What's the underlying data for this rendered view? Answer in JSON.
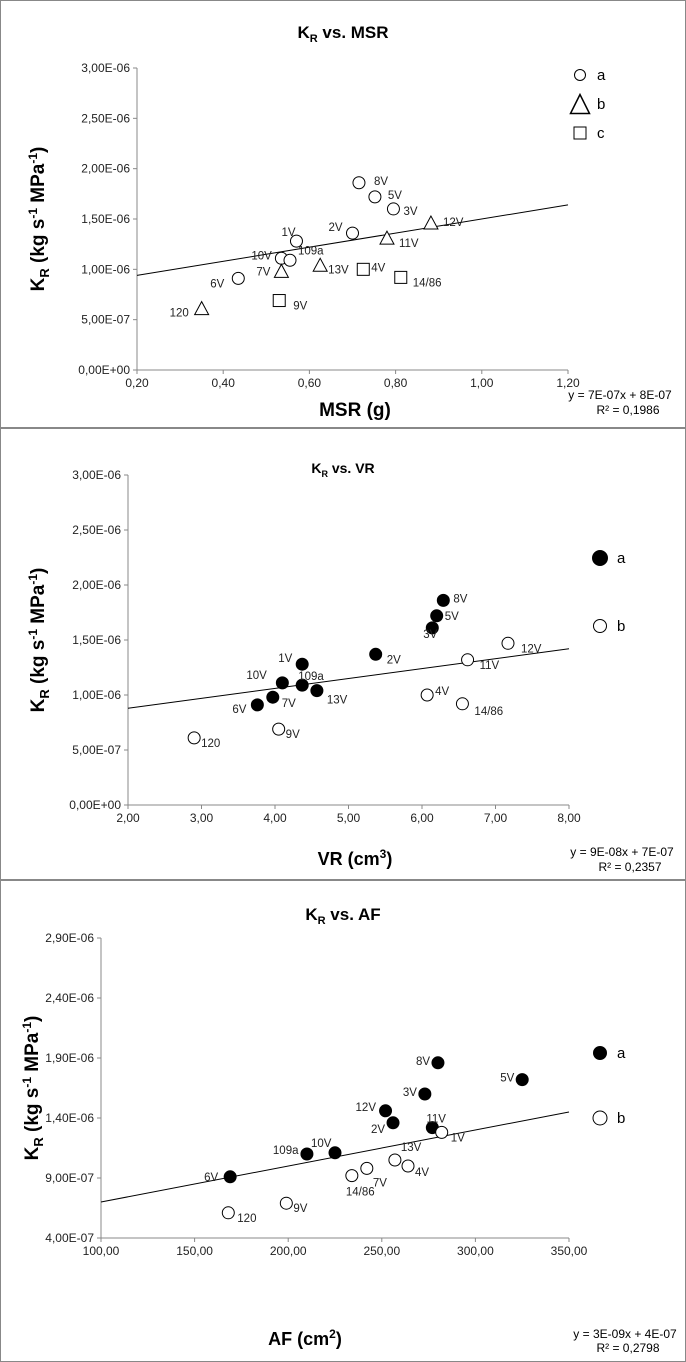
{
  "chart_data": [
    {
      "type": "scatter",
      "title": "K_R vs. MSR",
      "title_main": "K",
      "title_sub": "R",
      "title_rest": " vs. MSR",
      "ylabel": "K_R (kg s^-1 MPa^-1)",
      "xlabel": "MSR (g)",
      "xlim": [
        0.2,
        1.2
      ],
      "ylim": [
        0,
        3e-06
      ],
      "x_ticks": [
        "0,20",
        "0,40",
        "0,60",
        "0,80",
        "1,00",
        "1,20"
      ],
      "y_ticks": [
        "0,00E+00",
        "5,00E-07",
        "1,00E-06",
        "1,50E-06",
        "2,00E-06",
        "2,50E-06",
        "3,00E-06"
      ],
      "grid": false,
      "legend_position": "top-right",
      "series": [
        {
          "name": "a",
          "marker": "circle-open",
          "points": [
            {
              "label": "8V",
              "x": 0.715,
              "y": 1.86e-06
            },
            {
              "label": "5V",
              "x": 0.752,
              "y": 1.72e-06
            },
            {
              "label": "3V",
              "x": 0.795,
              "y": 1.6e-06
            },
            {
              "label": "2V",
              "x": 0.7,
              "y": 1.36e-06
            },
            {
              "label": "1V",
              "x": 0.57,
              "y": 1.28e-06
            },
            {
              "label": "10V",
              "x": 0.535,
              "y": 1.11e-06
            },
            {
              "label": "109a",
              "x": 0.555,
              "y": 1.09e-06
            },
            {
              "label": "6V",
              "x": 0.435,
              "y": 9.1e-07
            }
          ]
        },
        {
          "name": "b",
          "marker": "triangle-open",
          "points": [
            {
              "label": "12V",
              "x": 0.882,
              "y": 1.46e-06
            },
            {
              "label": "11V",
              "x": 0.78,
              "y": 1.31e-06
            },
            {
              "label": "13V",
              "x": 0.625,
              "y": 1.04e-06
            },
            {
              "label": "7V",
              "x": 0.535,
              "y": 9.8e-07
            },
            {
              "label": "120",
              "x": 0.35,
              "y": 6.1e-07
            }
          ]
        },
        {
          "name": "c",
          "marker": "square-open",
          "points": [
            {
              "label": "4V",
              "x": 0.725,
              "y": 1e-06
            },
            {
              "label": "14/86",
              "x": 0.812,
              "y": 9.2e-07
            },
            {
              "label": "9V",
              "x": 0.53,
              "y": 6.9e-07
            }
          ]
        }
      ],
      "trendline": {
        "slope": 7e-07,
        "intercept": 8e-07,
        "equation": "y = 7E-07x + 8E-07",
        "r2_text": "R² = 0,1986"
      }
    },
    {
      "type": "scatter",
      "title": "K_R vs. VR",
      "title_main": "K",
      "title_sub": "R",
      "title_rest": " vs. VR",
      "ylabel": "K_R (kg s^-1 MPa^-1)",
      "xlabel": "VR (cm3)",
      "xlim": [
        2,
        8
      ],
      "ylim": [
        0,
        3e-06
      ],
      "x_ticks": [
        "2,00",
        "3,00",
        "4,00",
        "5,00",
        "6,00",
        "7,00",
        "8,00"
      ],
      "y_ticks": [
        "0,00E+00",
        "5,00E-07",
        "1,00E-06",
        "1,50E-06",
        "2,00E-06",
        "2,50E-06",
        "3,00E-06"
      ],
      "grid": false,
      "legend_position": "right",
      "series": [
        {
          "name": "a",
          "marker": "circle-filled",
          "points": [
            {
              "label": "8V",
              "x": 6.29,
              "y": 1.86e-06
            },
            {
              "label": "5V",
              "x": 6.2,
              "y": 1.72e-06
            },
            {
              "label": "3V",
              "x": 6.14,
              "y": 1.61e-06
            },
            {
              "label": "2V",
              "x": 5.37,
              "y": 1.37e-06
            },
            {
              "label": "1V",
              "x": 4.37,
              "y": 1.28e-06
            },
            {
              "label": "10V",
              "x": 4.1,
              "y": 1.11e-06
            },
            {
              "label": "109a",
              "x": 4.37,
              "y": 1.09e-06
            },
            {
              "label": "13V",
              "x": 4.57,
              "y": 1.04e-06
            },
            {
              "label": "7V",
              "x": 3.97,
              "y": 9.8e-07
            },
            {
              "label": "6V",
              "x": 3.76,
              "y": 9.1e-07
            }
          ]
        },
        {
          "name": "b",
          "marker": "circle-open",
          "points": [
            {
              "label": "12V",
              "x": 7.17,
              "y": 1.47e-06
            },
            {
              "label": "11V",
              "x": 6.62,
              "y": 1.32e-06
            },
            {
              "label": "4V",
              "x": 6.07,
              "y": 1e-06
            },
            {
              "label": "14/86",
              "x": 6.55,
              "y": 9.2e-07
            },
            {
              "label": "9V",
              "x": 4.05,
              "y": 6.9e-07
            },
            {
              "label": "120",
              "x": 2.9,
              "y": 6.1e-07
            }
          ]
        }
      ],
      "trendline": {
        "slope": 9e-08,
        "intercept": 7e-07,
        "equation": "y = 9E-08x + 7E-07",
        "r2_text": "R² = 0,2357"
      }
    },
    {
      "type": "scatter",
      "title": "K_R vs. AF",
      "title_main": "K",
      "title_sub": "R",
      "title_rest": " vs. AF",
      "ylabel": "K_R (kg s^-1 MPa^-1)",
      "xlabel": "AF (cm2)",
      "xlim": [
        100,
        350
      ],
      "ylim": [
        4e-07,
        2.9e-06
      ],
      "x_ticks": [
        "100,00",
        "150,00",
        "200,00",
        "250,00",
        "300,00",
        "350,00"
      ],
      "y_ticks": [
        "4,00E-07",
        "9,00E-07",
        "1,40E-06",
        "1,90E-06",
        "2,40E-06",
        "2,90E-06"
      ],
      "grid": false,
      "legend_position": "top-right",
      "series": [
        {
          "name": "a",
          "marker": "circle-filled",
          "points": [
            {
              "label": "8V",
              "x": 280,
              "y": 1.86e-06
            },
            {
              "label": "5V",
              "x": 325,
              "y": 1.72e-06
            },
            {
              "label": "3V",
              "x": 273,
              "y": 1.6e-06
            },
            {
              "label": "12V",
              "x": 252,
              "y": 1.46e-06
            },
            {
              "label": "2V",
              "x": 256,
              "y": 1.36e-06
            },
            {
              "label": "11V",
              "x": 277,
              "y": 1.32e-06
            },
            {
              "label": "10V",
              "x": 225,
              "y": 1.11e-06
            },
            {
              "label": "109a",
              "x": 210,
              "y": 1.1e-06
            },
            {
              "label": "6V",
              "x": 169,
              "y": 9.1e-07
            }
          ]
        },
        {
          "name": "b",
          "marker": "circle-open",
          "points": [
            {
              "label": "1V",
              "x": 282,
              "y": 1.28e-06
            },
            {
              "label": "13V",
              "x": 257,
              "y": 1.05e-06
            },
            {
              "label": "4V",
              "x": 264,
              "y": 1e-06
            },
            {
              "label": "7V",
              "x": 242,
              "y": 9.8e-07
            },
            {
              "label": "14/86",
              "x": 234,
              "y": 9.2e-07
            },
            {
              "label": "9V",
              "x": 199,
              "y": 6.9e-07
            },
            {
              "label": "120",
              "x": 168,
              "y": 6.1e-07
            }
          ]
        }
      ],
      "trendline": {
        "slope": 3e-09,
        "intercept": 4e-07,
        "equation": "y = 3E-09x + 4E-07",
        "r2_text": "R² = 0,2798"
      }
    }
  ]
}
